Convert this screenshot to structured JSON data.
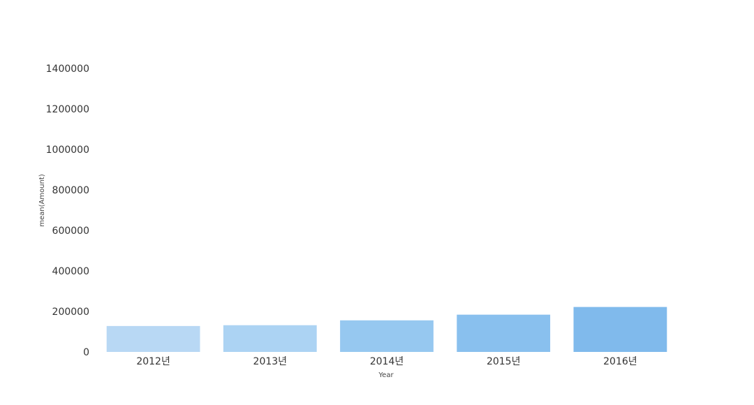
{
  "chart_data": {
    "type": "bar",
    "categories": [
      "2012년",
      "2013년",
      "2014년",
      "2015년",
      "2016년"
    ],
    "values": [
      128000,
      132000,
      156000,
      184000,
      222000
    ],
    "colors": [
      "#b8d8f4",
      "#acd3f3",
      "#96c8f0",
      "#89c0ee",
      "#80baec"
    ],
    "xlabel": "Year",
    "ylabel": "mean(Amount)",
    "yticks": [
      0,
      200000,
      400000,
      600000,
      800000,
      1000000,
      1200000,
      1400000
    ],
    "ylim": [
      0,
      1400000
    ],
    "grid": false,
    "legend": "none"
  }
}
